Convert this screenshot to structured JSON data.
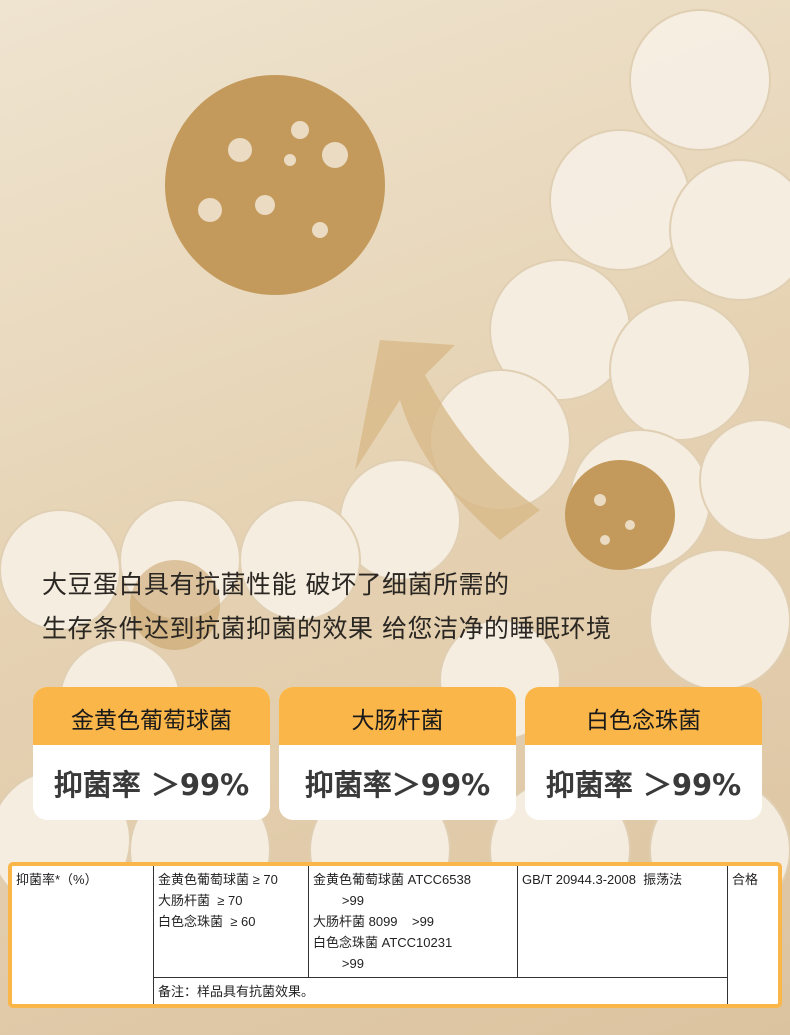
{
  "headline": {
    "line1": "大豆蛋白具有抗菌性能 破坏了细菌所需的",
    "line2": "生存条件达到抗菌抑菌的效果 给您洁净的睡眠环境"
  },
  "cards": [
    {
      "name": "金黄色葡萄球菌",
      "rate": "抑菌率 ＞99%"
    },
    {
      "name": "大肠杆菌",
      "rate": "抑菌率＞99%"
    },
    {
      "name": "白色念珠菌",
      "rate": "抑菌率 ＞99%"
    }
  ],
  "table": {
    "item": "抑菌率*（%）",
    "requirement": [
      "金黄色葡萄球菌 ≥ 70",
      "大肠杆菌  ≥ 70",
      "白色念珠菌  ≥ 60"
    ],
    "results": [
      "金黄色葡萄球菌 ATCC6538",
      "        >99",
      "大肠杆菌 8099    >99",
      "白色念珠菌 ATCC10231",
      "        >99"
    ],
    "method": "GB/T 20944.3-2008  振荡法",
    "verdict": "合格",
    "note": "备注：样品具有抗菌效果。"
  },
  "colors": {
    "accent": "#fbb64a",
    "background": "#e6d3b4",
    "virus": "#b8925a"
  }
}
